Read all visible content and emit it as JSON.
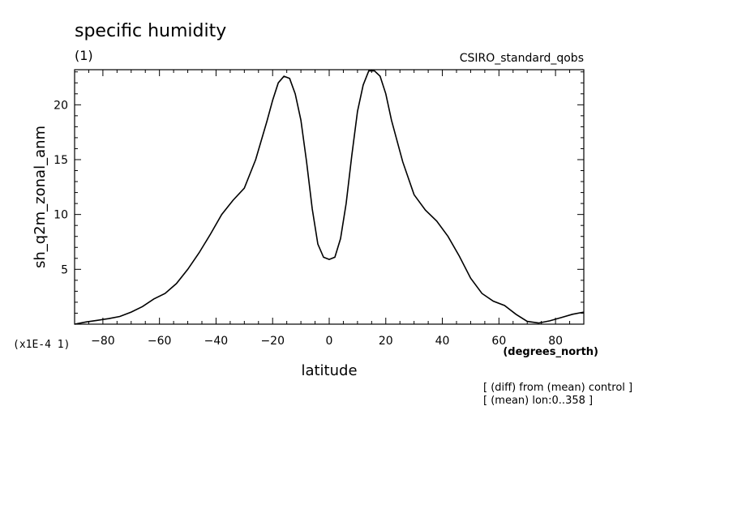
{
  "chart_data": {
    "type": "line",
    "title": "specific humidity",
    "panel_label": "(1)",
    "dataset_label": "CSIRO_standard_qobs",
    "ylabel": "sh_q2m_zonal_anm",
    "xlabel": "latitude",
    "x_units": "(degrees_north)",
    "y_scale_note": "(x1E-4 1)",
    "notes": [
      "[ (diff) from (mean) control ]",
      "[ (mean) lon:0..358 ]"
    ],
    "xlim": [
      -90,
      90
    ],
    "ylim": [
      0,
      23.2
    ],
    "x_ticks": [
      -80,
      -60,
      -40,
      -20,
      0,
      20,
      40,
      60,
      80
    ],
    "x_tick_labels": [
      "-80",
      "-60",
      "-40",
      "-20",
      "0",
      "20",
      "40",
      "60",
      "80"
    ],
    "y_ticks": [
      5,
      10,
      15,
      20
    ],
    "y_tick_labels": [
      "5",
      "10",
      "15",
      "20"
    ],
    "grid": false,
    "series": [
      {
        "x": [
          -90,
          -86,
          -82,
          -78,
          -74,
          -70,
          -66,
          -62,
          -58,
          -54,
          -50,
          -46,
          -42,
          -38,
          -34,
          -30,
          -26,
          -22,
          -20,
          -18,
          -16,
          -14,
          -12,
          -10,
          -8,
          -6,
          -4,
          -2,
          0,
          2,
          4,
          6,
          8,
          10,
          12,
          14,
          16,
          18,
          20,
          22,
          26,
          30,
          34,
          38,
          42,
          46,
          50,
          54,
          58,
          62,
          66,
          70,
          74,
          78,
          82,
          86,
          90
        ],
        "y": [
          0.0,
          0.2,
          0.35,
          0.5,
          0.7,
          1.1,
          1.6,
          2.3,
          2.8,
          3.7,
          5.0,
          6.5,
          8.2,
          10.0,
          11.3,
          12.4,
          15.0,
          18.5,
          20.4,
          22.0,
          22.6,
          22.4,
          21.0,
          18.6,
          14.8,
          10.5,
          7.3,
          6.1,
          5.9,
          6.1,
          7.8,
          11.0,
          15.4,
          19.4,
          21.8,
          23.1,
          23.1,
          22.6,
          21.0,
          18.6,
          14.8,
          11.8,
          10.4,
          9.4,
          8.0,
          6.2,
          4.2,
          2.8,
          2.1,
          1.7,
          0.9,
          0.25,
          0.1,
          0.3,
          0.6,
          0.9,
          1.1
        ]
      }
    ]
  }
}
